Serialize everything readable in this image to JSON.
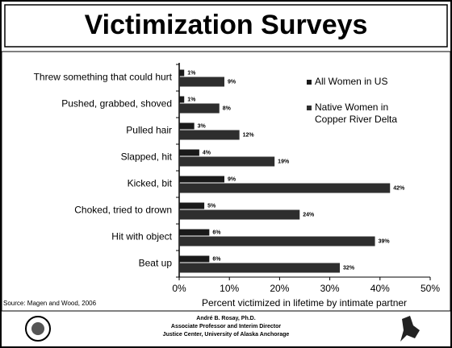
{
  "chart_data": {
    "type": "bar",
    "title": "Victimization Surveys",
    "categories": [
      "Threw something that could hurt",
      "Pushed, grabbed, shoved",
      "Pulled hair",
      "Slapped, hit",
      "Kicked, bit",
      "Choked, tried to drown",
      "Hit with object",
      "Beat up"
    ],
    "series": [
      {
        "name": "All Women in US",
        "color": "#1a1a1a",
        "values": [
          1,
          1,
          3,
          4,
          9,
          5,
          6,
          6
        ],
        "value_labels": [
          "1%",
          "1%",
          "3%",
          "4%",
          "9%",
          "5%",
          "6%",
          "6%"
        ]
      },
      {
        "name": "Native Women in Copper River Delta",
        "color": "#2e2e2e",
        "values": [
          9,
          8,
          12,
          19,
          42,
          24,
          39,
          32
        ],
        "value_labels": [
          "9%",
          "8%",
          "12%",
          "19%",
          "42%",
          "24%",
          "39%",
          "32%"
        ]
      }
    ],
    "xlabel": "Percent victimized in lifetime by intimate partner",
    "xlim": [
      0,
      50
    ],
    "xticks": [
      {
        "value": 0,
        "label": "0%"
      },
      {
        "value": 10,
        "label": "10%"
      },
      {
        "value": 20,
        "label": "20%"
      },
      {
        "value": 30,
        "label": "30%"
      },
      {
        "value": 40,
        "label": "40%"
      },
      {
        "value": 50,
        "label": "50%"
      }
    ],
    "source": "Source: Magen and Wood, 2006",
    "footer": [
      "André B. Rosay, Ph.D.",
      "Associate Professor and Interim Director",
      "Justice Center, University of Alaska Anchorage"
    ]
  }
}
